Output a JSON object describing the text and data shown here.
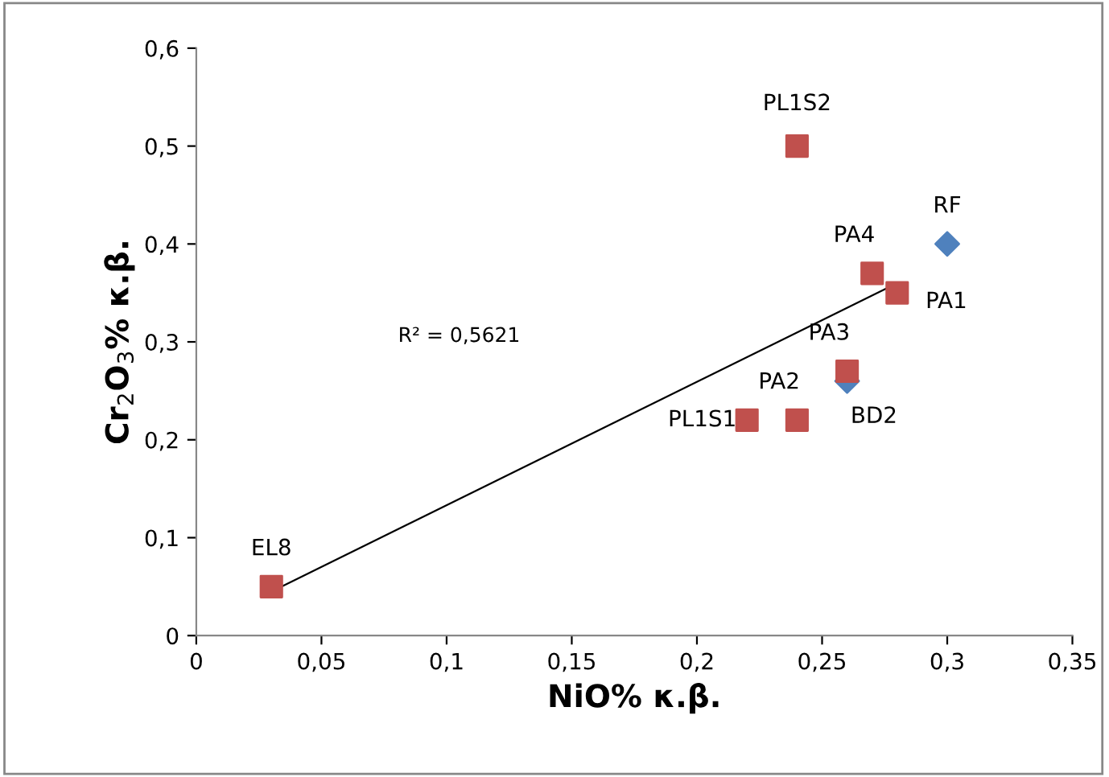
{
  "chart_data": {
    "type": "scatter",
    "xlabel": "NiO% κ.β.",
    "ylabel": "Cr$_{2}$O$_{3}$% κ.β.",
    "series": [
      {
        "type": "scatter",
        "color": "#4f81bd",
        "marker": "diamond",
        "x": [
          0.3,
          0.26
        ],
        "values": [
          0.4,
          0.26
        ]
      },
      {
        "type": "scatter",
        "color": "#c0504d",
        "marker": "square",
        "x": [
          0.24,
          0.27,
          0.28,
          0.26,
          0.24,
          0.22,
          0.03
        ],
        "values": [
          0.5,
          0.37,
          0.35,
          0.27,
          0.22,
          0.22,
          0.05
        ]
      },
      {
        "type": "line",
        "color": "#000000",
        "marker": "none",
        "x": [
          0.03,
          0.28
        ],
        "values": [
          0.045,
          0.36
        ]
      }
    ],
    "annotations": [
      {
        "text": "RF",
        "x": 0.3,
        "y": 0.4
      },
      {
        "text": "BD2",
        "x": 0.26,
        "y": 0.26
      },
      {
        "text": "PL1S2",
        "x": 0.24,
        "y": 0.5
      },
      {
        "text": "PA4",
        "x": 0.27,
        "y": 0.37
      },
      {
        "text": "PA1",
        "x": 0.28,
        "y": 0.35
      },
      {
        "text": "PA3",
        "x": 0.26,
        "y": 0.27
      },
      {
        "text": "PA2",
        "x": 0.24,
        "y": 0.22
      },
      {
        "text": "PL1S1",
        "x": 0.22,
        "y": 0.22
      },
      {
        "text": "EL8",
        "x": 0.03,
        "y": 0.05
      },
      "R² = 0,5621"
    ],
    "xlim": [
      0,
      0.35
    ],
    "xticks": [
      0,
      {
        "value": 0.05,
        "label": "0,05"
      },
      {
        "value": 0.1,
        "label": "0,1"
      },
      {
        "value": 0.15,
        "label": "0,15"
      },
      {
        "value": 0.2,
        "label": "0,2"
      },
      {
        "value": 0.25,
        "label": "0,25"
      },
      {
        "value": 0.3,
        "label": "0,3"
      },
      {
        "value": 0.35,
        "label": "0,35"
      }
    ],
    "ylim": [
      0,
      0.6
    ],
    "yticks": [
      0,
      {
        "value": 0.1,
        "label": "0,1"
      },
      {
        "value": 0.2,
        "label": "0,2"
      },
      {
        "value": 0.3,
        "label": "0,3"
      },
      {
        "value": 0.4,
        "label": "0,4"
      },
      {
        "value": 0.5,
        "label": "0,5"
      },
      {
        "value": 0.6,
        "label": "0,6"
      }
    ],
    "grid": false,
    "legend": false
  }
}
